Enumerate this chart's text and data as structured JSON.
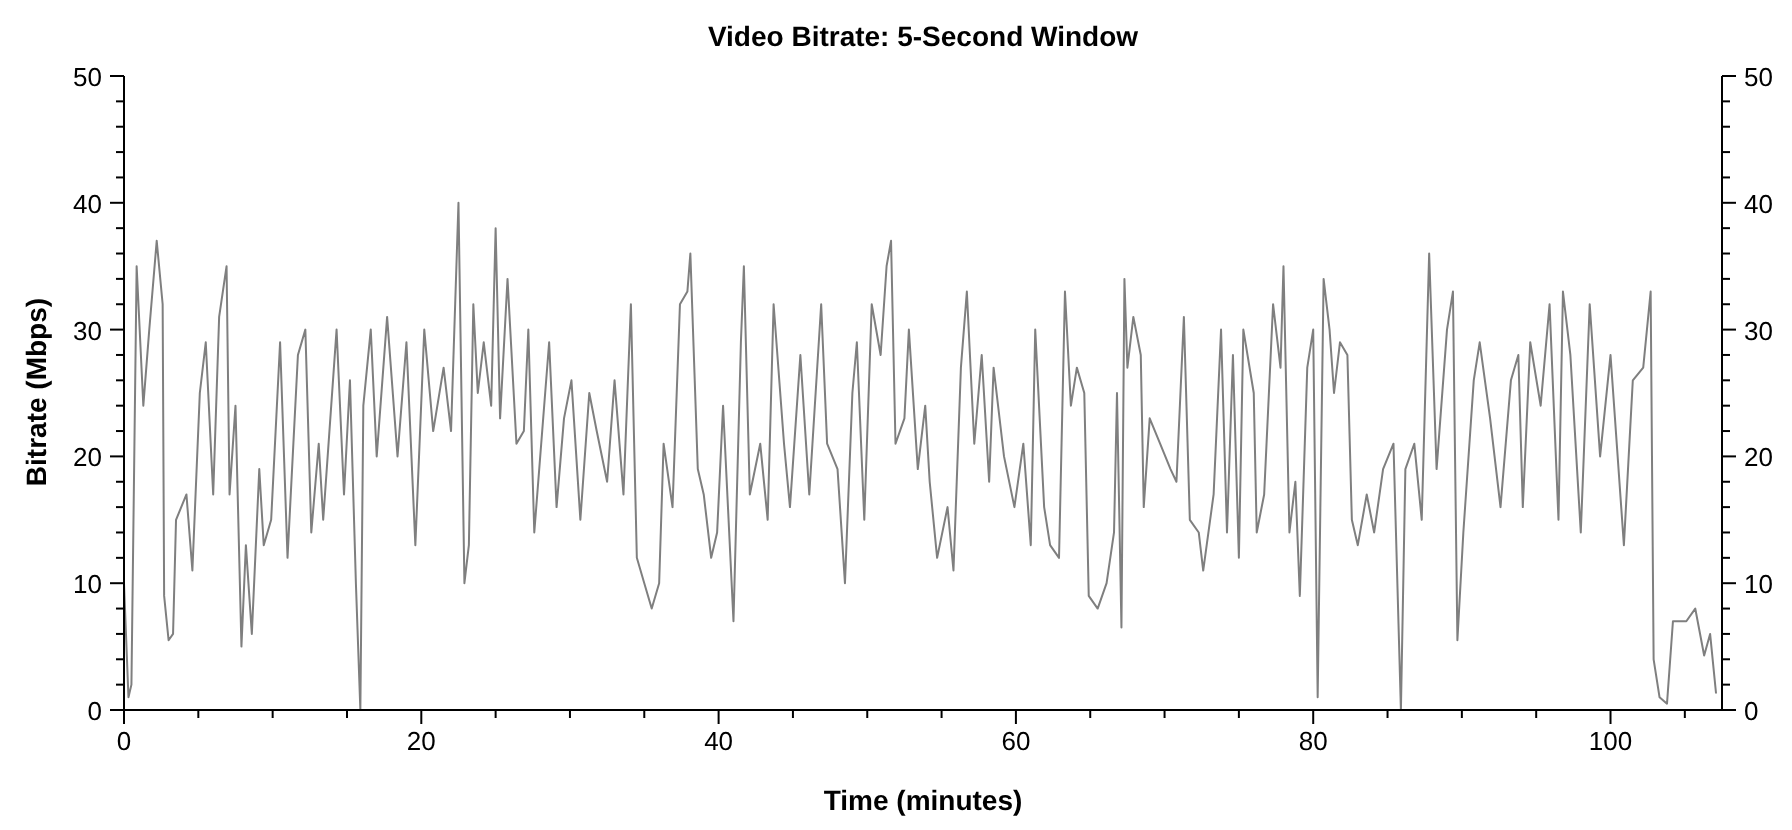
{
  "chart_data": {
    "type": "line",
    "title": "Video Bitrate: 5-Second Window",
    "xlabel": "Time (minutes)",
    "ylabel": "Bitrate (Mbps)",
    "xlim": [
      0,
      107.5
    ],
    "ylim": [
      0,
      50
    ],
    "y2lim": [
      0,
      50
    ],
    "xticks": [
      0,
      {
        "value": 5,
        "label": null
      },
      20,
      {
        "value": 10,
        "label": null
      },
      {
        "value": 15,
        "label": null
      },
      {
        "value": 25,
        "label": null
      },
      {
        "value": 30,
        "label": null
      },
      {
        "value": 35,
        "label": null
      },
      40,
      {
        "value": 45,
        "label": null
      },
      {
        "value": 50,
        "label": null
      },
      {
        "value": 55,
        "label": null
      },
      60,
      {
        "value": 65,
        "label": null
      },
      {
        "value": 70,
        "label": null
      },
      {
        "value": 75,
        "label": null
      },
      80,
      {
        "value": 85,
        "label": null
      },
      {
        "value": 90,
        "label": null
      },
      {
        "value": 95,
        "label": null
      },
      100,
      {
        "value": 105,
        "label": null
      }
    ],
    "yticks": [
      0,
      {
        "value": 2,
        "label": null
      },
      {
        "value": 4,
        "label": null
      },
      {
        "value": 6,
        "label": null
      },
      {
        "value": 8,
        "label": null
      },
      10,
      {
        "value": 12,
        "label": null
      },
      {
        "value": 14,
        "label": null
      },
      {
        "value": 16,
        "label": null
      },
      {
        "value": 18,
        "label": null
      },
      20,
      {
        "value": 22,
        "label": null
      },
      {
        "value": 24,
        "label": null
      },
      {
        "value": 26,
        "label": null
      },
      {
        "value": 28,
        "label": null
      },
      30,
      {
        "value": 32,
        "label": null
      },
      {
        "value": 34,
        "label": null
      },
      {
        "value": 36,
        "label": null
      },
      {
        "value": 38,
        "label": null
      },
      40,
      {
        "value": 42,
        "label": null
      },
      {
        "value": 44,
        "label": null
      },
      {
        "value": 46,
        "label": null
      },
      {
        "value": 48,
        "label": null
      },
      50
    ],
    "y2ticks": [
      0,
      {
        "value": 2,
        "label": null
      },
      {
        "value": 4,
        "label": null
      },
      {
        "value": 6,
        "label": null
      },
      {
        "value": 8,
        "label": null
      },
      10,
      {
        "value": 12,
        "label": null
      },
      {
        "value": 14,
        "label": null
      },
      {
        "value": 16,
        "label": null
      },
      {
        "value": 18,
        "label": null
      },
      20,
      {
        "value": 22,
        "label": null
      },
      {
        "value": 24,
        "label": null
      },
      {
        "value": 26,
        "label": null
      },
      {
        "value": 28,
        "label": null
      },
      30,
      {
        "value": 32,
        "label": null
      },
      {
        "value": 34,
        "label": null
      },
      {
        "value": 36,
        "label": null
      },
      {
        "value": 38,
        "label": null
      },
      40,
      {
        "value": 42,
        "label": null
      },
      {
        "value": 44,
        "label": null
      },
      {
        "value": 46,
        "label": null
      },
      {
        "value": 48,
        "label": null
      },
      50
    ],
    "marker": "none",
    "line_style": "solid",
    "series": [
      {
        "color": "#7f7f7f",
        "x": [
          0,
          0.3,
          0.5,
          0.85,
          1.3,
          1.7,
          2.2,
          2.6,
          2.7,
          3.0,
          3.3,
          3.5,
          4.2,
          4.6,
          5.1,
          5.5,
          6.0,
          6.4,
          6.9,
          7.1,
          7.5,
          7.9,
          8.2,
          8.6,
          9.1,
          9.4,
          9.9,
          10.5,
          11.0,
          11.7,
          12.2,
          12.6,
          13.1,
          13.4,
          14.3,
          14.8,
          15.2,
          15.6,
          15.9,
          16.1,
          16.6,
          17.0,
          17.7,
          18.4,
          19.0,
          19.6,
          20.2,
          20.8,
          21.5,
          22.0,
          22.5,
          22.9,
          23.2,
          23.5,
          23.8,
          24.2,
          24.7,
          25.0,
          25.3,
          25.8,
          26.4,
          26.9,
          27.2,
          27.6,
          28.6,
          29.1,
          29.6,
          30.1,
          30.7,
          31.3,
          31.8,
          32.5,
          33.0,
          33.6,
          34.1,
          34.5,
          35.0,
          35.5,
          36.0,
          36.3,
          36.9,
          37.4,
          37.9,
          38.1,
          38.6,
          39.0,
          39.5,
          39.9,
          40.3,
          41.0,
          41.5,
          41.7,
          42.1,
          42.8,
          43.3,
          43.7,
          44.4,
          44.8,
          45.5,
          46.1,
          46.9,
          47.3,
          48.0,
          48.5,
          49.0,
          49.3,
          49.8,
          50.3,
          50.9,
          51.3,
          51.6,
          51.9,
          52.5,
          52.8,
          53.4,
          53.9,
          54.2,
          54.7,
          55.4,
          55.8,
          56.3,
          56.7,
          57.2,
          57.7,
          58.2,
          58.5,
          59.2,
          59.9,
          60.5,
          61.0,
          61.3,
          61.9,
          62.3,
          62.9,
          63.3,
          63.7,
          64.1,
          64.6,
          64.9,
          65.5,
          66.1,
          66.6,
          66.8,
          67.1,
          67.3,
          67.5,
          67.9,
          68.4,
          68.6,
          69.0,
          69.7,
          70.4,
          70.8,
          71.3,
          71.7,
          72.3,
          72.6,
          73.3,
          73.8,
          74.2,
          74.6,
          75.0,
          75.3,
          76.0,
          76.2,
          76.7,
          77.3,
          77.8,
          78.0,
          78.4,
          78.8,
          79.1,
          79.6,
          80.0,
          80.3,
          80.7,
          81.1,
          81.4,
          81.8,
          82.3,
          82.6,
          83.0,
          83.6,
          84.1,
          84.7,
          85.4,
          85.9,
          86.2,
          86.8,
          87.3,
          87.8,
          88.3,
          89.0,
          89.4,
          89.7,
          90.1,
          90.8,
          91.2,
          91.9,
          92.6,
          93.3,
          93.8,
          94.1,
          94.6,
          95.3,
          95.9,
          96.5,
          96.8,
          97.3,
          98.0,
          98.6,
          99.3,
          100.0,
          100.9,
          101.5,
          102.2,
          102.7,
          102.9,
          103.3,
          103.8,
          104.2,
          105.1,
          105.7,
          106.3,
          106.7,
          107.1
        ],
        "values": [
          10,
          1,
          2,
          35,
          24,
          30,
          37,
          32,
          9,
          5.5,
          6,
          15,
          17,
          11,
          25,
          29,
          17,
          31,
          35,
          17,
          24,
          5,
          13,
          6,
          19,
          13,
          15,
          29,
          12,
          28,
          30,
          14,
          21,
          15,
          30,
          17,
          26,
          10,
          0,
          24,
          30,
          20,
          31,
          20,
          29,
          13,
          30,
          22,
          27,
          22,
          40,
          10,
          13,
          32,
          25,
          29,
          24,
          38,
          23,
          34,
          21,
          22,
          30,
          14,
          29,
          16,
          23,
          26,
          15,
          25,
          22,
          18,
          26,
          17,
          32,
          12,
          10,
          8,
          10,
          21,
          16,
          32,
          33,
          36,
          19,
          17,
          12,
          14,
          24,
          7,
          29,
          35,
          17,
          21,
          15,
          32,
          21,
          16,
          28,
          17,
          32,
          21,
          19,
          10,
          25,
          29,
          15,
          32,
          28,
          35,
          37,
          21,
          23,
          30,
          19,
          24,
          18,
          12,
          16,
          11,
          27,
          33,
          21,
          28,
          18,
          27,
          20,
          16,
          21,
          13,
          30,
          16,
          13,
          12,
          33,
          24,
          27,
          25,
          9,
          8,
          10,
          14,
          25,
          6.5,
          34,
          27,
          31,
          28,
          16,
          23,
          21,
          19,
          18,
          31,
          15,
          14,
          11,
          17,
          30,
          14,
          28,
          12,
          30,
          25,
          14,
          17,
          32,
          27,
          35,
          14,
          18,
          9,
          27,
          30,
          1,
          34,
          30,
          25,
          29,
          28,
          15,
          13,
          17,
          14,
          19,
          21,
          0,
          19,
          21,
          15,
          36,
          19,
          30,
          33,
          5.5,
          14,
          26,
          29,
          23,
          16,
          26,
          28,
          16,
          29,
          24,
          32,
          15,
          33,
          28,
          14,
          32,
          20,
          28,
          13,
          26,
          27,
          33,
          4,
          1,
          0.5,
          7,
          7,
          8,
          4.3,
          6,
          1.3
        ]
      }
    ]
  }
}
